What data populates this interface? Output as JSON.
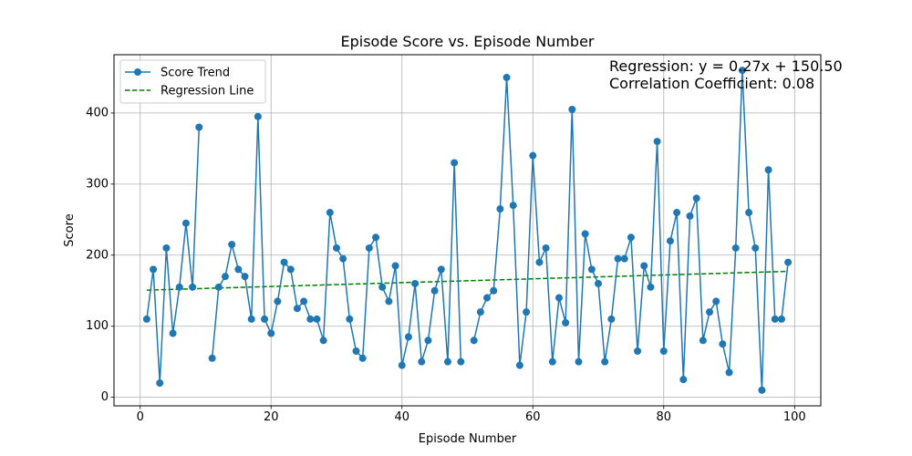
{
  "chart_data": {
    "type": "line",
    "title": "Episode Score vs. Episode Number",
    "xlabel": "Episode Number",
    "ylabel": "Score",
    "xlim": [
      -4,
      104
    ],
    "ylim": [
      -12,
      482
    ],
    "xticks": [
      0,
      20,
      40,
      60,
      80,
      100
    ],
    "yticks": [
      0,
      100,
      200,
      300,
      400
    ],
    "grid": true,
    "legend_position": "top-left",
    "series": [
      {
        "name": "Score Trend",
        "type": "line-markers",
        "color": "#1f77b4",
        "x": [
          1,
          2,
          3,
          4,
          5,
          6,
          7,
          8,
          9,
          10,
          11,
          12,
          13,
          14,
          15,
          16,
          17,
          18,
          19,
          20,
          21,
          22,
          23,
          24,
          25,
          26,
          27,
          28,
          29,
          30,
          31,
          32,
          33,
          34,
          35,
          36,
          37,
          38,
          39,
          40,
          41,
          42,
          43,
          44,
          45,
          46,
          47,
          48,
          49,
          50,
          51,
          52,
          53,
          54,
          55,
          56,
          57,
          58,
          59,
          60,
          61,
          62,
          63,
          64,
          65,
          66,
          67,
          68,
          69,
          70,
          71,
          72,
          73,
          74,
          75,
          76,
          77,
          78,
          79,
          80,
          81,
          82,
          83,
          84,
          85,
          86,
          87,
          88,
          89,
          90,
          91,
          92,
          93,
          94,
          95,
          96,
          97,
          98,
          99
        ],
        "y": [
          110,
          180,
          20,
          210,
          90,
          155,
          245,
          155,
          380,
          null,
          55,
          155,
          170,
          215,
          180,
          170,
          110,
          395,
          110,
          90,
          135,
          190,
          180,
          125,
          135,
          110,
          110,
          80,
          260,
          210,
          195,
          110,
          65,
          55,
          210,
          225,
          155,
          135,
          185,
          45,
          85,
          160,
          50,
          80,
          150,
          180,
          50,
          330,
          50,
          null,
          80,
          120,
          140,
          150,
          265,
          450,
          270,
          45,
          120,
          340,
          190,
          210,
          50,
          140,
          105,
          405,
          50,
          230,
          180,
          160,
          50,
          110,
          195,
          195,
          225,
          65,
          185,
          155,
          360,
          65,
          220,
          260,
          25,
          255,
          280,
          80,
          120,
          135,
          75,
          35,
          210,
          460,
          260,
          210,
          10,
          320,
          110,
          110,
          190
        ]
      },
      {
        "name": "Regression Line",
        "type": "dashed-line",
        "color": "#008000",
        "x": [
          1,
          99
        ],
        "y": [
          150.77,
          177.23
        ]
      }
    ],
    "annotations": [
      "Regression: y = 0.27x + 150.50",
      "Correlation Coefficient: 0.08"
    ]
  }
}
